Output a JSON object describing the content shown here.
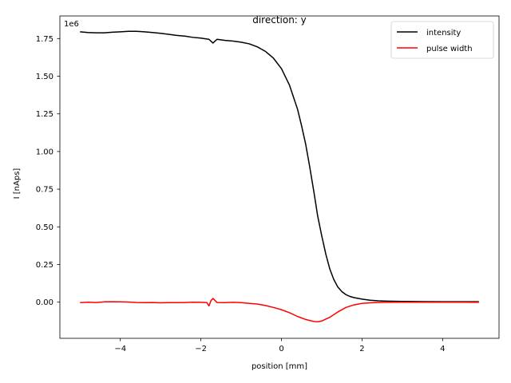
{
  "chart_data": {
    "type": "line",
    "title": "direction: y",
    "xlabel": "position [mm]",
    "ylabel": "I [nAps]",
    "y_offset_text": "1e6",
    "xlim": [
      -5.5,
      5.4
    ],
    "ylim": [
      -0.24,
      1.9
    ],
    "y_scale_factor": 1000000,
    "x_ticks": [
      -4,
      -2,
      0,
      2,
      4
    ],
    "x_tick_labels": [
      "−4",
      "−2",
      "0",
      "2",
      "4"
    ],
    "y_ticks": [
      0.0,
      0.25,
      0.5,
      0.75,
      1.0,
      1.25,
      1.5,
      1.75
    ],
    "y_tick_labels": [
      "0.00",
      "0.25",
      "0.50",
      "0.75",
      "1.00",
      "1.25",
      "1.50",
      "1.75"
    ],
    "grid": false,
    "legend_position": "top-right",
    "series": [
      {
        "name": "intensity",
        "color": "#000000",
        "x": [
          -5.0,
          -4.8,
          -4.6,
          -4.4,
          -4.2,
          -4.0,
          -3.8,
          -3.6,
          -3.4,
          -3.2,
          -3.0,
          -2.8,
          -2.6,
          -2.4,
          -2.2,
          -2.0,
          -1.8,
          -1.7,
          -1.6,
          -1.4,
          -1.2,
          -1.0,
          -0.8,
          -0.6,
          -0.4,
          -0.2,
          0.0,
          0.2,
          0.4,
          0.5,
          0.6,
          0.7,
          0.8,
          0.9,
          1.0,
          1.1,
          1.2,
          1.3,
          1.4,
          1.5,
          1.6,
          1.7,
          1.8,
          2.0,
          2.2,
          2.4,
          2.6,
          3.0,
          3.5,
          4.0,
          4.5,
          4.9
        ],
        "y": [
          1.795,
          1.79,
          1.788,
          1.788,
          1.792,
          1.795,
          1.798,
          1.798,
          1.795,
          1.79,
          1.785,
          1.778,
          1.771,
          1.766,
          1.758,
          1.753,
          1.745,
          1.72,
          1.745,
          1.738,
          1.733,
          1.726,
          1.715,
          1.695,
          1.665,
          1.62,
          1.55,
          1.44,
          1.28,
          1.17,
          1.05,
          0.9,
          0.74,
          0.57,
          0.44,
          0.32,
          0.22,
          0.15,
          0.1,
          0.07,
          0.05,
          0.038,
          0.03,
          0.02,
          0.013,
          0.009,
          0.007,
          0.005,
          0.004,
          0.003,
          0.003,
          0.003
        ]
      },
      {
        "name": "pulse width",
        "color": "#ff0000",
        "x": [
          -5.0,
          -4.8,
          -4.6,
          -4.4,
          -4.2,
          -4.0,
          -3.8,
          -3.6,
          -3.4,
          -3.2,
          -3.0,
          -2.8,
          -2.6,
          -2.4,
          -2.2,
          -2.0,
          -1.85,
          -1.8,
          -1.75,
          -1.7,
          -1.6,
          -1.4,
          -1.2,
          -1.0,
          -0.8,
          -0.6,
          -0.4,
          -0.2,
          0.0,
          0.2,
          0.4,
          0.6,
          0.8,
          0.9,
          1.0,
          1.2,
          1.4,
          1.6,
          1.8,
          2.0,
          2.2,
          2.4,
          2.6,
          3.0,
          3.5,
          4.0,
          4.5,
          4.9
        ],
        "y": [
          -0.003,
          0.0,
          -0.002,
          0.002,
          0.003,
          0.002,
          0.001,
          -0.002,
          -0.003,
          -0.002,
          -0.004,
          -0.003,
          -0.003,
          -0.002,
          0.0,
          -0.001,
          -0.003,
          -0.025,
          0.01,
          0.025,
          -0.002,
          -0.003,
          -0.001,
          -0.003,
          -0.008,
          -0.012,
          -0.022,
          -0.035,
          -0.05,
          -0.07,
          -0.095,
          -0.115,
          -0.128,
          -0.13,
          -0.125,
          -0.1,
          -0.065,
          -0.035,
          -0.018,
          -0.008,
          -0.004,
          -0.002,
          -0.001,
          0.0,
          0.0,
          0.0,
          0.0,
          -0.001
        ]
      }
    ]
  }
}
